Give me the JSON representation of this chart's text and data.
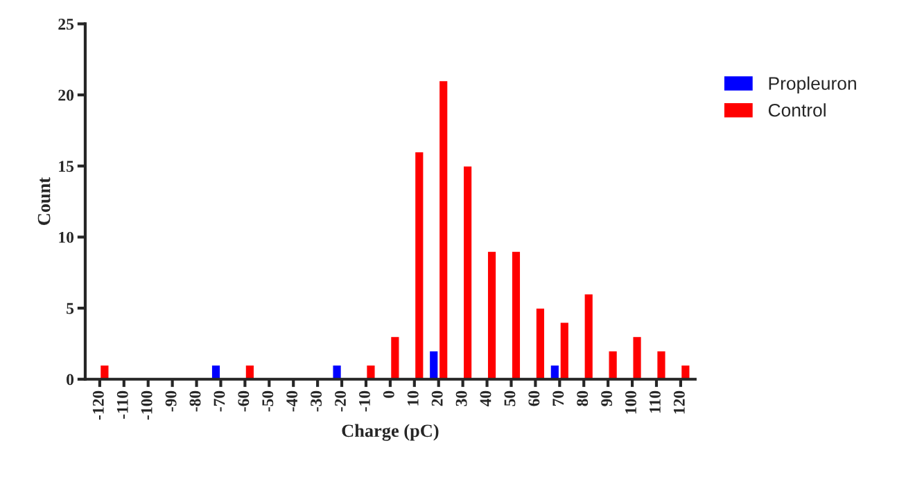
{
  "chart_data": {
    "type": "bar",
    "xlabel": "Charge (pC)",
    "ylabel": "Count",
    "categories": [
      "-120",
      "-110",
      "-100",
      "-90",
      "-80",
      "-70",
      "-60",
      "-50",
      "-40",
      "-30",
      "-20",
      "-10",
      "0",
      "10",
      "20",
      "30",
      "40",
      "50",
      "60",
      "70",
      "80",
      "90",
      "100",
      "110",
      "120"
    ],
    "series": [
      {
        "name": "Propleuron",
        "color": "#0000ff",
        "values": [
          null,
          null,
          null,
          null,
          null,
          1,
          null,
          null,
          null,
          null,
          1,
          null,
          null,
          null,
          2,
          null,
          null,
          null,
          null,
          1,
          null,
          null,
          null,
          null,
          null
        ]
      },
      {
        "name": "Control",
        "color": "#ff0000",
        "values": [
          1,
          null,
          null,
          null,
          null,
          null,
          1,
          null,
          null,
          null,
          null,
          1,
          3,
          16,
          21,
          15,
          9,
          9,
          5,
          4,
          6,
          2,
          3,
          2,
          1
        ]
      }
    ],
    "ylim": [
      0,
      25
    ],
    "yticks": [
      0,
      5,
      10,
      15,
      20,
      25
    ],
    "grid": false,
    "legend": "right"
  }
}
